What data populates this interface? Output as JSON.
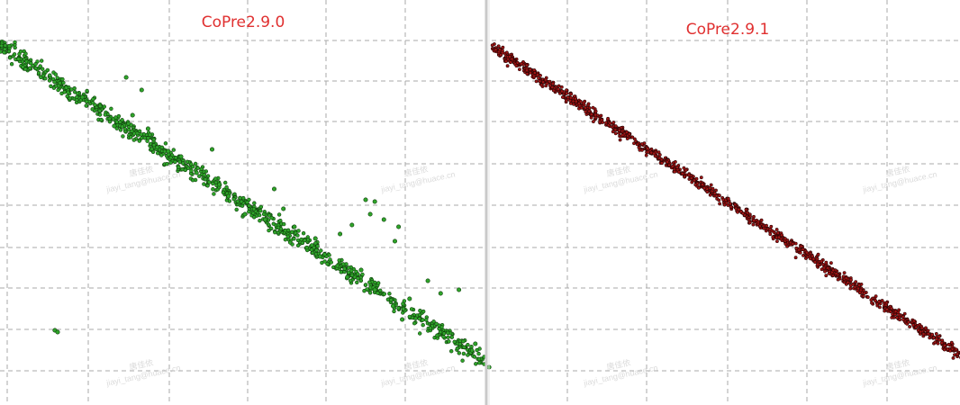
{
  "colors": {
    "left_point_fill": "#2fa52a",
    "left_point_stroke": "#0f3d0c",
    "right_point_fill": "#a01414",
    "right_point_stroke": "#2a0505",
    "title_color": "#e03030",
    "grid_color": "#a9a9a9",
    "background": "#ffffff"
  },
  "watermark": {
    "name": "唐佳依",
    "email": "jiayi_tang@huace.cn"
  },
  "chart_data": [
    {
      "type": "scatter",
      "title": "CoPre2.9.0",
      "xlim": [
        0,
        530
      ],
      "ylim": [
        0,
        450
      ],
      "y_direction": "down",
      "grid": true,
      "trend": {
        "x": [
          0,
          530
        ],
        "y": [
          50,
          400
        ]
      },
      "band_points": 900,
      "band_spread": 5,
      "outliers": [
        {
          "x": 138,
          "y": 86
        },
        {
          "x": 155,
          "y": 100
        },
        {
          "x": 90,
          "y": 108
        },
        {
          "x": 145,
          "y": 128
        },
        {
          "x": 162,
          "y": 143
        },
        {
          "x": 198,
          "y": 174
        },
        {
          "x": 232,
          "y": 166
        },
        {
          "x": 215,
          "y": 192
        },
        {
          "x": 240,
          "y": 205
        },
        {
          "x": 300,
          "y": 210
        },
        {
          "x": 310,
          "y": 232
        },
        {
          "x": 322,
          "y": 252
        },
        {
          "x": 345,
          "y": 265
        },
        {
          "x": 372,
          "y": 260
        },
        {
          "x": 385,
          "y": 250
        },
        {
          "x": 400,
          "y": 222
        },
        {
          "x": 410,
          "y": 224
        },
        {
          "x": 405,
          "y": 238
        },
        {
          "x": 420,
          "y": 244
        },
        {
          "x": 436,
          "y": 252
        },
        {
          "x": 432,
          "y": 268
        },
        {
          "x": 395,
          "y": 300
        },
        {
          "x": 410,
          "y": 322
        },
        {
          "x": 430,
          "y": 340
        },
        {
          "x": 448,
          "y": 332
        },
        {
          "x": 468,
          "y": 312
        },
        {
          "x": 482,
          "y": 326
        },
        {
          "x": 502,
          "y": 322
        },
        {
          "x": 440,
          "y": 355
        },
        {
          "x": 60,
          "y": 367
        },
        {
          "x": 63,
          "y": 369
        },
        {
          "x": 520,
          "y": 382
        },
        {
          "x": 535,
          "y": 408
        },
        {
          "x": 290,
          "y": 244
        },
        {
          "x": 268,
          "y": 238
        },
        {
          "x": 350,
          "y": 285
        },
        {
          "x": 380,
          "y": 308
        },
        {
          "x": 125,
          "y": 140
        },
        {
          "x": 184,
          "y": 168
        },
        {
          "x": 250,
          "y": 218
        }
      ]
    },
    {
      "type": "scatter",
      "title": "CoPre2.9.1",
      "xlim": [
        0,
        525
      ],
      "ylim": [
        0,
        450
      ],
      "y_direction": "down",
      "grid": true,
      "trend": {
        "x": [
          0,
          525
        ],
        "y": [
          52,
          395
        ]
      },
      "band_points": 1100,
      "band_spread": 3,
      "outliers": []
    }
  ]
}
